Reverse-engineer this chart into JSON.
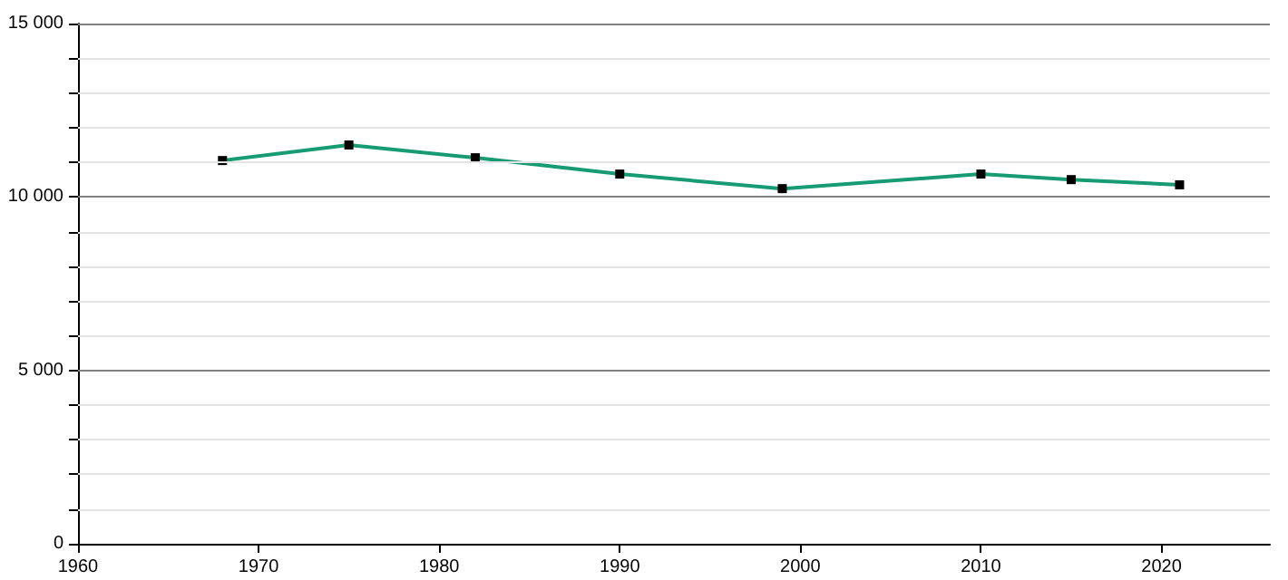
{
  "chart_data": {
    "type": "line",
    "x": [
      1968,
      1975,
      1982,
      1990,
      1999,
      2010,
      2015,
      2021
    ],
    "series": [
      {
        "color": "#169b74",
        "values": [
          11050,
          11500,
          11130,
          10660,
          10240,
          10660,
          10500,
          10350
        ]
      }
    ],
    "xlim": [
      1960,
      2026
    ],
    "xticks": [
      1960,
      1970,
      1980,
      1990,
      2000,
      2010,
      2020
    ],
    "ylim": [
      0,
      15000
    ],
    "yticks": [
      {
        "value": 0,
        "label": "0"
      },
      {
        "value": 1000,
        "label": null
      },
      {
        "value": 2000,
        "label": null
      },
      {
        "value": 3000,
        "label": null
      },
      {
        "value": 4000,
        "label": null
      },
      {
        "value": 5000,
        "label": "5 000"
      },
      {
        "value": 6000,
        "label": null
      },
      {
        "value": 7000,
        "label": null
      },
      {
        "value": 8000,
        "label": null
      },
      {
        "value": 9000,
        "label": null
      },
      {
        "value": 10000,
        "label": "10 000"
      },
      {
        "value": 11000,
        "label": null
      },
      {
        "value": 12000,
        "label": null
      },
      {
        "value": 13000,
        "label": null
      },
      {
        "value": 14000,
        "label": null
      },
      {
        "value": 15000,
        "label": "15 000"
      }
    ],
    "grid": "y",
    "marker": "square",
    "line_style": "solid"
  }
}
